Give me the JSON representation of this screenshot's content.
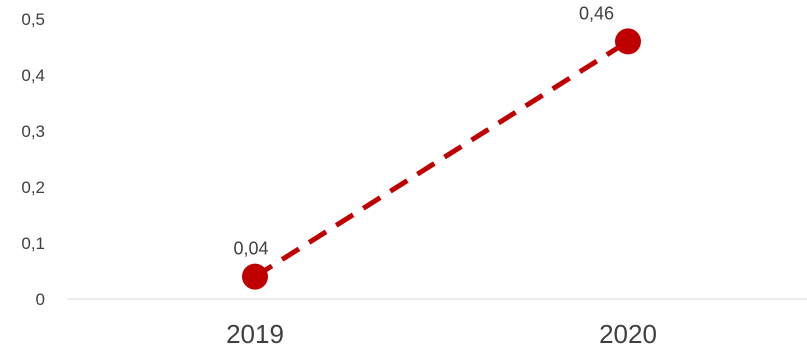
{
  "chart_data": {
    "type": "line",
    "categories": [
      "2019",
      "2020"
    ],
    "series": [
      {
        "values": [
          0.04,
          0.46
        ],
        "data_labels": [
          "0,04",
          "0,46"
        ],
        "color": "#C00000",
        "line_style": "dashed",
        "marker": "circle"
      }
    ],
    "y_ticks": [
      0,
      0.1,
      0.2,
      0.3,
      0.4,
      0.5
    ],
    "y_tick_labels": [
      "0",
      "0,1",
      "0,2",
      "0,3",
      "0,4",
      "0,5"
    ],
    "ylim": [
      0,
      0.5
    ],
    "grid": false,
    "legend": "none",
    "axis_color": "#D9D9D9",
    "text_color": "#404040"
  }
}
